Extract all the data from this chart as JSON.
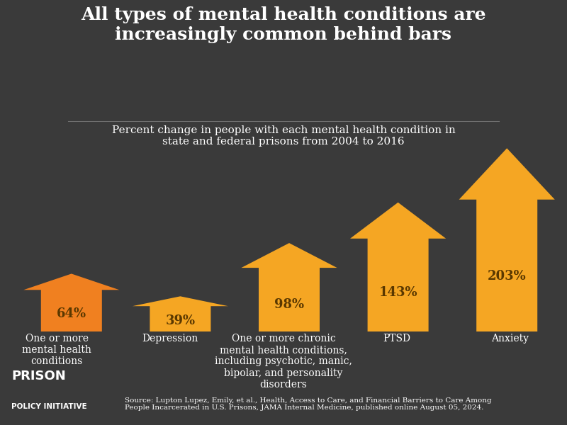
{
  "title": "All types of mental health conditions are\nincreasingly common behind bars",
  "subtitle": "Percent change in people with each mental health condition in\nstate and federal prisons from 2004 to 2016",
  "categories": [
    "One or more\nmental health\nconditions",
    "Depression",
    "One or more chronic\nmental health conditions,\nincluding psychotic, manic,\nbipolar, and personality\ndisorders",
    "PTSD",
    "Anxiety"
  ],
  "values": [
    64,
    39,
    98,
    143,
    203
  ],
  "labels": [
    "64%",
    "39%",
    "98%",
    "143%",
    "203%"
  ],
  "arrow_color_yellow": "#F5A623",
  "arrow_color_orange": "#F08020",
  "background_color": "#3a3a3a",
  "text_color": "#ffffff",
  "label_color": "#5a3800",
  "source_text": "Source: Lupton Lupez, Emily, et al., Health, Access to Care, and Financial Barriers to Care Among\nPeople Incarcerated in U.S. Prisons, JAMA Internal Medicine, published online August 05, 2024.",
  "footer_logo_line1": "PRISON",
  "footer_logo_line2": "POLICY INITIATIVE",
  "title_fontsize": 18,
  "subtitle_fontsize": 11,
  "label_fontsize": 13,
  "cat_fontsize": 10
}
